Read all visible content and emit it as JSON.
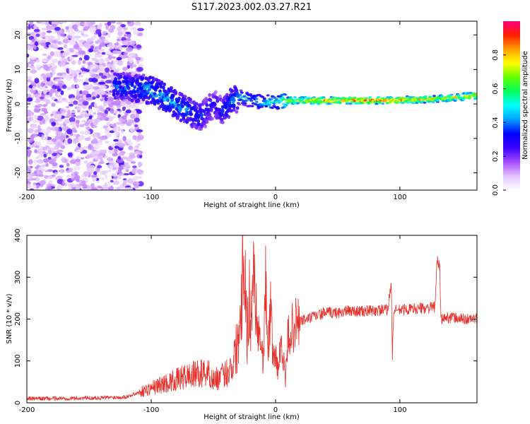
{
  "title": "S117.2023.002.03.27.R21",
  "colors": {
    "snr_line": "#e8302a",
    "spec_dark": "#4b00e0",
    "spec_light": "#d9b6ff"
  },
  "chart_data": [
    {
      "type": "heatmap",
      "name": "spectrogram",
      "xlabel": "Height of straight line (km)",
      "ylabel": "Frequency (Hz)",
      "xlim": [
        -200,
        162
      ],
      "ylim": [
        -25,
        24
      ],
      "xticks": [
        -200,
        -100,
        0,
        100
      ],
      "xtick_labels": [
        "-200",
        "-100",
        "0",
        "100"
      ],
      "yticks": [
        -20,
        -10,
        0,
        10,
        20
      ],
      "ytick_labels": [
        "-20",
        "-10",
        "0",
        "10",
        "20"
      ],
      "grid": false,
      "colorbar": {
        "label": "Normalized spectral amplitude",
        "range": [
          0.0,
          1.0
        ],
        "ticks": [
          0.0,
          0.2,
          0.4,
          0.6,
          0.8
        ],
        "tick_labels": [
          "0.0",
          "0.2",
          "0.4",
          "0.6",
          "0.8"
        ],
        "colormap": [
          "#ffffff",
          "#e2c2ff",
          "#a64dff",
          "#3a00ff",
          "#0000ff",
          "#00a0ff",
          "#00ffff",
          "#00ff60",
          "#60ff00",
          "#ffff00",
          "#ffa000",
          "#ff2000",
          "#ff0080"
        ],
        "placement": "right"
      },
      "ridge": {
        "x": [
          -125,
          -110,
          -100,
          -90,
          -80,
          -70,
          -60,
          -50,
          -42,
          -35,
          -28,
          -20,
          -10,
          0,
          10,
          30,
          60,
          90,
          110,
          130,
          150,
          162
        ],
        "y": [
          5,
          4.5,
          4,
          2,
          0,
          -2,
          -4,
          0,
          -2,
          1,
          2,
          1,
          0.5,
          0.5,
          1,
          1,
          1,
          1,
          1.2,
          1.5,
          2,
          2.5
        ],
        "amplitude": [
          0.4,
          0.4,
          0.45,
          0.45,
          0.45,
          0.4,
          0.35,
          0.3,
          0.35,
          0.4,
          0.45,
          0.45,
          0.5,
          0.55,
          0.7,
          0.85,
          0.9,
          0.9,
          0.85,
          0.75,
          0.8,
          0.8
        ]
      }
    },
    {
      "type": "line",
      "name": "snr",
      "xlabel": "Height of straight line (km)",
      "ylabel": "SNR (10 * v/v)",
      "xlim": [
        -200,
        162
      ],
      "ylim": [
        0,
        400
      ],
      "xticks": [
        -200,
        -100,
        0,
        100
      ],
      "xtick_labels": [
        "-200",
        "-100",
        "0",
        "100"
      ],
      "yticks": [
        0,
        100,
        200,
        300,
        400
      ],
      "ytick_labels": [
        "0",
        "100",
        "200",
        "300",
        "400"
      ],
      "grid": false,
      "series": [
        {
          "x": [
            -200,
            -180,
            -160,
            -140,
            -120,
            -110,
            -100,
            -90,
            -80,
            -70,
            -60,
            -55,
            -50,
            -45,
            -40,
            -35,
            -30,
            -27,
            -25,
            -23,
            -21,
            -20,
            -18,
            -15,
            -12,
            -10,
            -8,
            -6,
            -4,
            -2,
            0,
            2,
            5,
            8,
            10,
            15,
            20,
            30,
            40,
            50,
            60,
            70,
            80,
            90,
            93,
            94,
            95,
            100,
            110,
            120,
            128,
            130,
            132,
            133,
            140,
            150,
            162
          ],
          "y": [
            10,
            10,
            11,
            12,
            14,
            25,
            35,
            45,
            55,
            65,
            70,
            75,
            55,
            60,
            70,
            90,
            150,
            300,
            395,
            150,
            250,
            180,
            340,
            200,
            150,
            100,
            280,
            130,
            220,
            115,
            110,
            80,
            150,
            50,
            160,
            185,
            195,
            205,
            215,
            215,
            220,
            218,
            220,
            222,
            285,
            115,
            220,
            222,
            224,
            226,
            228,
            340,
            322,
            200,
            205,
            200,
            200
          ]
        }
      ]
    }
  ]
}
